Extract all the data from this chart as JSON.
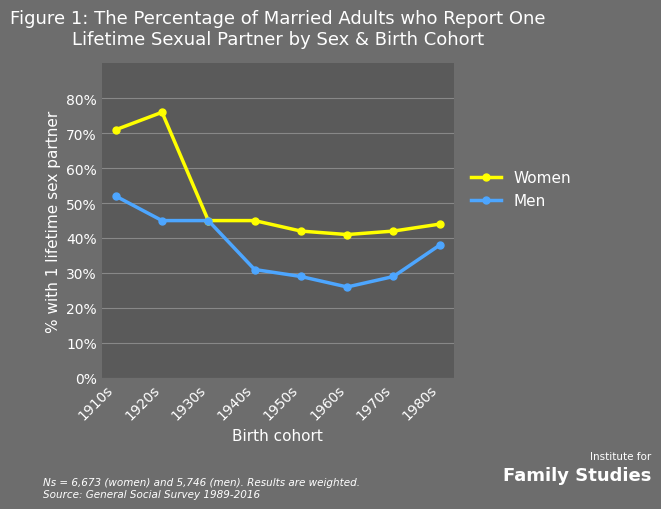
{
  "title": "Figure 1: The Percentage of Married Adults who Report One\nLifetime Sexual Partner by Sex & Birth Cohort",
  "xlabel": "Birth cohort",
  "ylabel": "% with 1 lifetime sex partner",
  "categories": [
    "1910s",
    "1920s",
    "1930s",
    "1940s",
    "1950s",
    "1960s",
    "1970s",
    "1980s"
  ],
  "women_values": [
    71,
    76,
    45,
    45,
    42,
    41,
    42,
    44
  ],
  "men_values": [
    52,
    45,
    45,
    31,
    29,
    26,
    29,
    38
  ],
  "women_color": "#FFFF00",
  "men_color": "#4DA6FF",
  "background_color": "#6d6d6d",
  "plot_bg_color": "#5a5a5a",
  "text_color": "#ffffff",
  "grid_color": "#888888",
  "ylim": [
    0,
    90
  ],
  "yticks": [
    0,
    10,
    20,
    30,
    40,
    50,
    60,
    70,
    80
  ],
  "footnote": "Ns = 6,673 (women) and 5,746 (men). Results are weighted.\nSource: General Social Survey 1989-2016",
  "title_fontsize": 13,
  "axis_label_fontsize": 11,
  "tick_fontsize": 10,
  "legend_fontsize": 11
}
